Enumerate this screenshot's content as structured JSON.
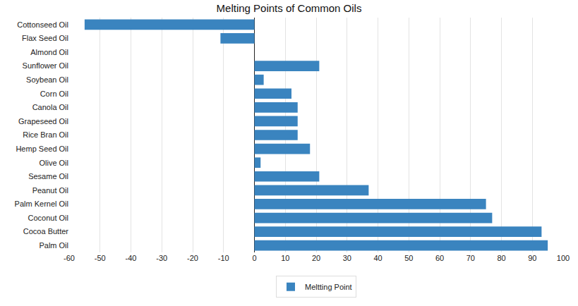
{
  "chart_data": {
    "type": "bar",
    "title": "Melting Points of Common Oils",
    "orientation": "horizontal",
    "categories": [
      "Cottonseed Oil",
      "Flax Seed Oil",
      "Almond Oil",
      "Sunflower Oil",
      "Soybean Oil",
      "Corn Oil",
      "Canola Oil",
      "Grapeseed Oil",
      "Rice Bran Oil",
      "Hemp Seed Oil",
      "Olive Oil",
      "Sesame Oil",
      "Peanut Oil",
      "Palm Kernel Oil",
      "Coconut Oil",
      "Cocoa Butter",
      "Palm Oil"
    ],
    "series": [
      {
        "name": "Meltting Point",
        "color": "#3a84bf",
        "values": [
          -55,
          -11,
          0,
          21,
          3,
          12,
          14,
          14,
          14,
          18,
          2,
          21,
          37,
          75,
          77,
          93,
          95
        ]
      }
    ],
    "xlim": [
      -60,
      100
    ],
    "xticks": [
      -60,
      -50,
      -40,
      -30,
      -20,
      -10,
      0,
      10,
      20,
      30,
      40,
      50,
      60,
      70,
      80,
      90,
      100
    ],
    "grid": true,
    "legend": "bottom"
  }
}
